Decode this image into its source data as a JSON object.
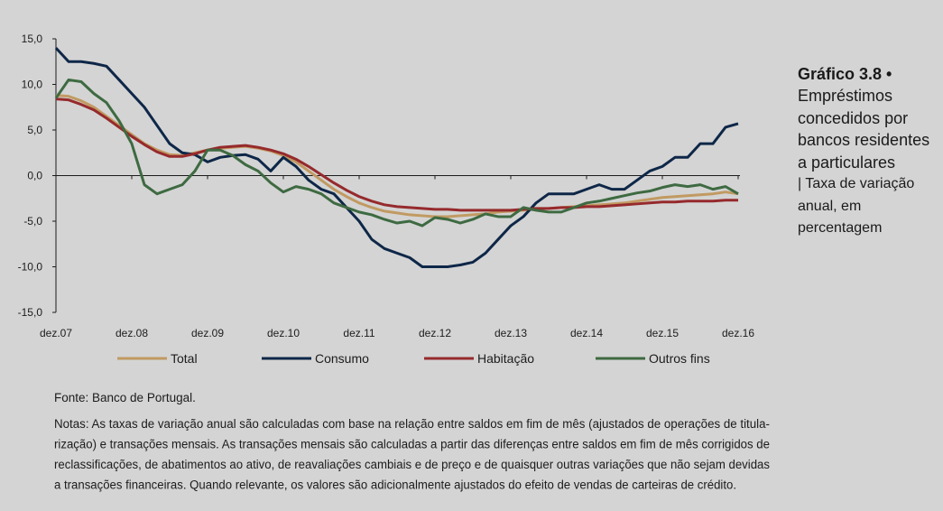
{
  "chart_data": {
    "type": "line",
    "title": "Gráfico 3.8 •",
    "subtitle": "Empréstimos concedidos por bancos residentes a particulares",
    "subtitle_note": "| Taxa de variação anual, em percentagem",
    "categories": [
      "dez.07",
      null,
      null,
      null,
      null,
      null,
      "dez.08",
      null,
      null,
      null,
      null,
      null,
      "dez.09",
      null,
      null,
      null,
      null,
      null,
      "dez.10",
      null,
      null,
      null,
      null,
      null,
      "dez.11",
      null,
      null,
      null,
      null,
      null,
      "dez.12",
      null,
      null,
      null,
      null,
      null,
      "dez.13",
      null,
      null,
      null,
      null,
      null,
      "dez.14",
      null,
      null,
      null,
      null,
      null,
      "dez.15",
      null,
      null,
      null,
      null,
      null,
      "dez.16"
    ],
    "ylim": [
      -15,
      15
    ],
    "yticks": [
      {
        "value": 15,
        "label": "15,0"
      },
      {
        "value": 10,
        "label": "10,0"
      },
      {
        "value": 5,
        "label": "5,0"
      },
      {
        "value": 0,
        "label": "0,0"
      },
      {
        "value": -5,
        "label": "-5,0"
      },
      {
        "value": -10,
        "label": "-10,0"
      },
      {
        "value": -15,
        "label": "-15,0"
      }
    ],
    "grid": false,
    "series": [
      {
        "name": "Total",
        "color": "#c19a62",
        "values": [
          8.8,
          8.7,
          8.2,
          7.5,
          6.5,
          5.5,
          4.5,
          3.5,
          2.8,
          2.3,
          2.2,
          2.5,
          2.8,
          3.0,
          3.1,
          3.2,
          3.0,
          2.7,
          2.2,
          1.5,
          0.5,
          -0.5,
          -1.5,
          -2.3,
          -3.0,
          -3.5,
          -3.9,
          -4.1,
          -4.3,
          -4.4,
          -4.5,
          -4.5,
          -4.4,
          -4.3,
          -4.2,
          -4.0,
          -3.9,
          -3.8,
          -3.7,
          -3.6,
          -3.5,
          -3.4,
          -3.3,
          -3.2,
          -3.1,
          -3.0,
          -2.8,
          -2.6,
          -2.4,
          -2.3,
          -2.2,
          -2.1,
          -2.0,
          -1.8,
          -2.0
        ]
      },
      {
        "name": "Consumo",
        "color": "#0e2748",
        "values": [
          14,
          12.5,
          12.5,
          12.3,
          12,
          10.5,
          9,
          7.5,
          5.5,
          3.5,
          2.5,
          2.3,
          1.5,
          2,
          2.2,
          2.3,
          1.8,
          0.5,
          2,
          1,
          -0.5,
          -1.5,
          -2,
          -3.5,
          -5,
          -7,
          -8,
          -8.5,
          -9,
          -10,
          -10,
          -10,
          -9.8,
          -9.5,
          -8.5,
          -7,
          -5.5,
          -4.5,
          -3,
          -2,
          -2,
          -2,
          -1.5,
          -1,
          -1.5,
          -1.5,
          -0.5,
          0.5,
          1,
          2,
          2,
          3.5,
          3.5,
          5.3,
          5.7
        ]
      },
      {
        "name": "Habitação",
        "color": "#962a2c",
        "values": [
          8.4,
          8.3,
          7.8,
          7.2,
          6.3,
          5.3,
          4.3,
          3.4,
          2.6,
          2.1,
          2.1,
          2.4,
          2.8,
          3.1,
          3.2,
          3.3,
          3.1,
          2.8,
          2.4,
          1.8,
          1.0,
          0.1,
          -0.8,
          -1.6,
          -2.3,
          -2.8,
          -3.2,
          -3.4,
          -3.5,
          -3.6,
          -3.7,
          -3.7,
          -3.8,
          -3.8,
          -3.8,
          -3.8,
          -3.8,
          -3.7,
          -3.6,
          -3.6,
          -3.5,
          -3.5,
          -3.4,
          -3.4,
          -3.3,
          -3.2,
          -3.1,
          -3.0,
          -2.9,
          -2.9,
          -2.8,
          -2.8,
          -2.8,
          -2.7,
          -2.7
        ]
      },
      {
        "name": "Outros fins",
        "color": "#3e6a41",
        "values": [
          8.5,
          10.5,
          10.3,
          9,
          8,
          6,
          3.5,
          -1,
          -2,
          -1.5,
          -1,
          0.5,
          2.8,
          2.8,
          2.2,
          1.2,
          0.5,
          -0.8,
          -1.8,
          -1.2,
          -1.5,
          -2,
          -3,
          -3.5,
          -4,
          -4.3,
          -4.8,
          -5.2,
          -5,
          -5.5,
          -4.6,
          -4.8,
          -5.2,
          -4.8,
          -4.2,
          -4.5,
          -4.5,
          -3.5,
          -3.8,
          -4,
          -4,
          -3.5,
          -3,
          -2.8,
          -2.5,
          -2.2,
          -1.9,
          -1.7,
          -1.3,
          -1,
          -1.2,
          -1,
          -1.5,
          -1.2,
          -2
        ]
      }
    ],
    "source": "Fonte: Banco de Portugal.",
    "notes": [
      "Notas: As taxas de variação anual são calculadas com base na relação entre saldos em fim de mês (ajustados de operações de titula-",
      "rização) e transações mensais. As transações mensais são calculadas a partir das diferenças entre saldos em fim de mês corrigidos de",
      "reclassificações, de abatimentos ao ativo, de reavaliações cambiais e de preço e de quaisquer outras variações que não sejam devidas",
      "a transações financeiras. Quando relevante, os valores são adicionalmente ajustados do efeito de vendas de carteiras de crédito."
    ]
  }
}
